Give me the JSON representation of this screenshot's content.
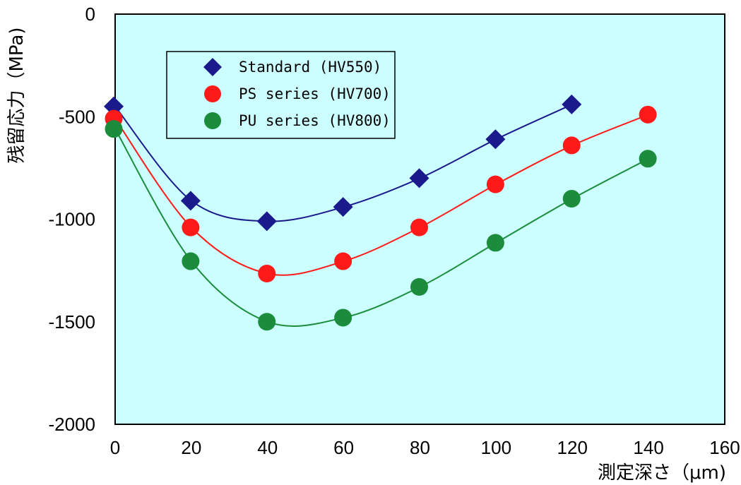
{
  "chart_data": {
    "type": "line",
    "title": "",
    "xlabel": "測定深さ（μm)",
    "ylabel": "残留応力（MPa)",
    "xlim": [
      0,
      160
    ],
    "ylim": [
      -2000,
      0
    ],
    "x_ticks": [
      "0",
      "20",
      "40",
      "60",
      "80",
      "100",
      "120",
      "140",
      "160"
    ],
    "y_ticks": [
      "0",
      "-500",
      "-1000",
      "-1500",
      "-2000"
    ],
    "legend_position": "top-left",
    "plot_background": "#ccffff",
    "grid": false,
    "series": [
      {
        "name": "Standard (HV550)",
        "marker": "diamond",
        "color": "#1a1a8c",
        "x": [
          0,
          20,
          40,
          60,
          80,
          100,
          120
        ],
        "values": [
          -450,
          -910,
          -1010,
          -940,
          -800,
          -610,
          -440
        ]
      },
      {
        "name": "PS series (HV700)",
        "marker": "circle",
        "color": "#ff1a1a",
        "x": [
          0,
          20,
          40,
          60,
          80,
          100,
          120,
          140
        ],
        "values": [
          -510,
          -1040,
          -1265,
          -1205,
          -1040,
          -830,
          -640,
          -490
        ]
      },
      {
        "name": "PU series (HV800)",
        "marker": "circle",
        "color": "#1a8c3c",
        "x": [
          0,
          20,
          40,
          60,
          80,
          100,
          120,
          140
        ],
        "values": [
          -560,
          -1205,
          -1500,
          -1480,
          -1330,
          -1115,
          -900,
          -705
        ]
      }
    ]
  }
}
